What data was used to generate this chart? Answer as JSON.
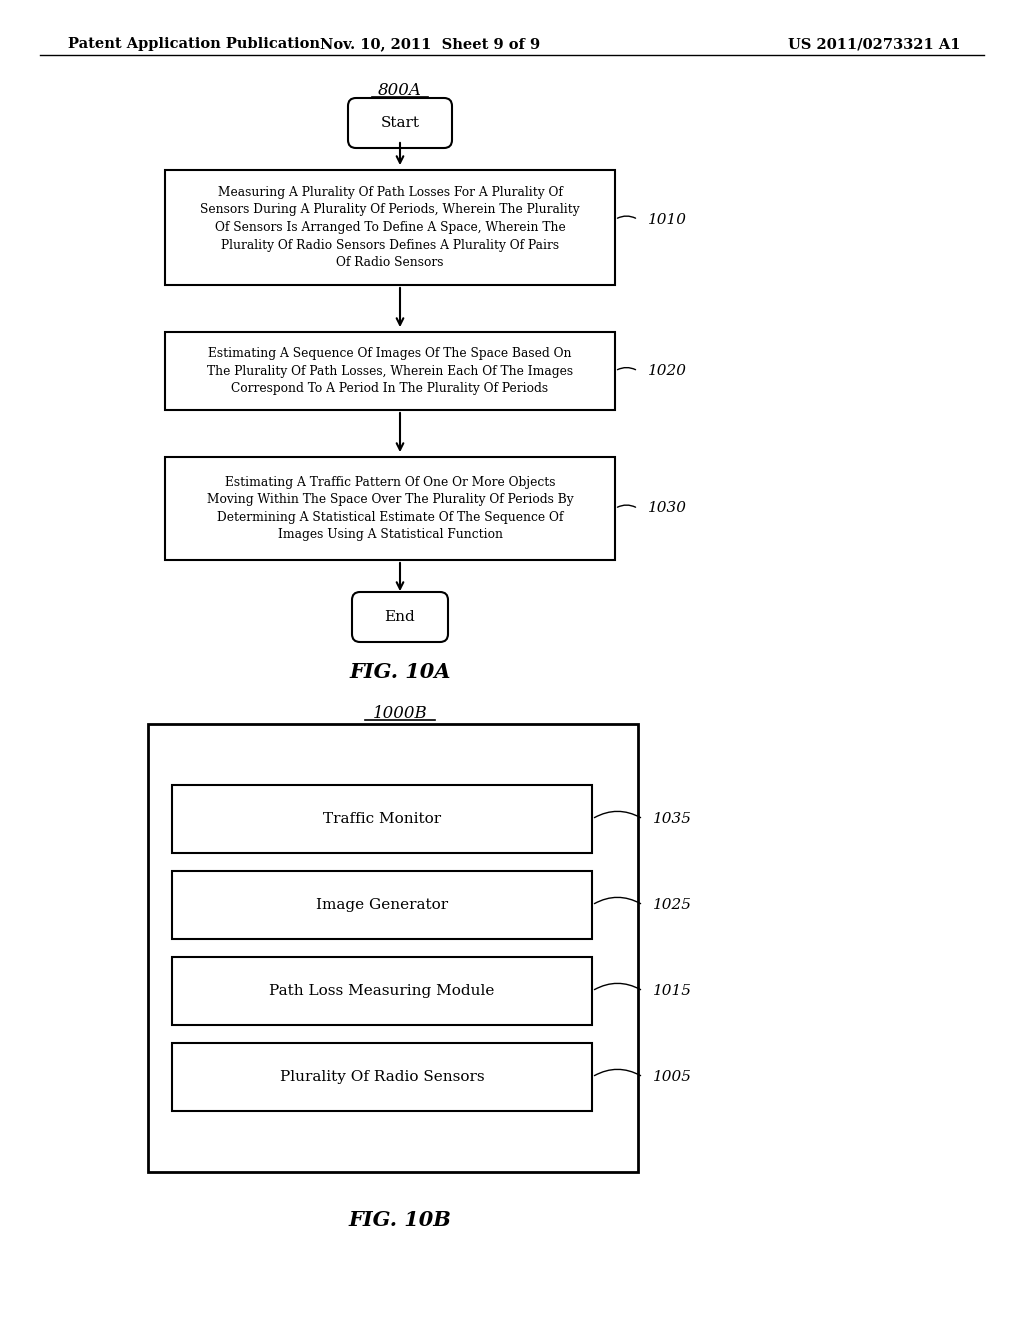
{
  "bg_color": "#ffffff",
  "header_left": "Patent Application Publication",
  "header_center": "Nov. 10, 2011  Sheet 9 of 9",
  "header_right": "US 2011/0273321 A1",
  "fig_a_label": "800A",
  "fig_a_caption": "FIG. 10A",
  "fig_b_label": "1000B",
  "fig_b_caption": "FIG. 10B",
  "flowchart": {
    "start_label": "Start",
    "end_label": "End",
    "box1_text": "Measuring A Plurality Of Path Losses For A Plurality Of\nSensors During A Plurality Of Periods, Wherein The Plurality\nOf Sensors Is Arranged To Define A Space, Wherein The\nPlurality Of Radio Sensors Defines A Plurality Of Pairs\nOf Radio Sensors",
    "box1_label": "1010",
    "box2_text": "Estimating A Sequence Of Images Of The Space Based On\nThe Plurality Of Path Losses, Wherein Each Of The Images\nCorrespond To A Period In The Plurality Of Periods",
    "box2_label": "1020",
    "box3_text": "Estimating A Traffic Pattern Of One Or More Objects\nMoving Within The Space Over The Plurality Of Periods By\nDetermining A Statistical Estimate Of The Sequence Of\nImages Using A Statistical Function",
    "box3_label": "1030"
  },
  "system_diagram": {
    "label": "1000B",
    "caption": "FIG. 10B",
    "modules": [
      {
        "text": "Plurality Of Radio Sensors",
        "label": "1005"
      },
      {
        "text": "Path Loss Measuring Module",
        "label": "1015"
      },
      {
        "text": "Image Generator",
        "label": "1025"
      },
      {
        "text": "Traffic Monitor",
        "label": "1035"
      }
    ]
  }
}
